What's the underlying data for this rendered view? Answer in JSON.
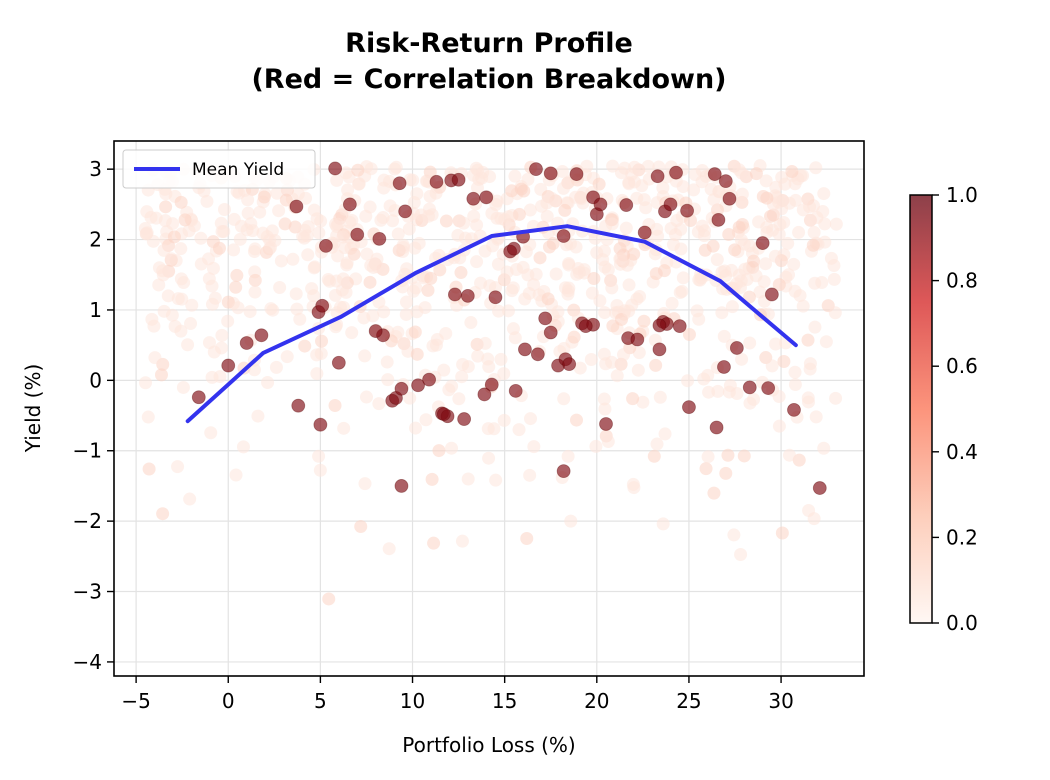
{
  "chart_data": {
    "type": "scatter",
    "title": "Risk-Return Profile",
    "subtitle": "(Red = Correlation Breakdown)",
    "xlabel": "Portfolio Loss (%)",
    "ylabel": "Yield (%)",
    "xlim": [
      -6.2,
      34.5
    ],
    "ylim": [
      -4.2,
      3.4
    ],
    "xticks": [
      "−5",
      "0",
      "5",
      "10",
      "15",
      "20",
      "25",
      "30"
    ],
    "xtick_values": [
      -5,
      0,
      5,
      10,
      15,
      20,
      25,
      30
    ],
    "yticks": [
      "−4",
      "−3",
      "−2",
      "−1",
      "0",
      "1",
      "2",
      "3"
    ],
    "ytick_values": [
      -4,
      -3,
      -2,
      -1,
      0,
      1,
      2,
      3
    ],
    "grid": true,
    "legend": {
      "position": "top-left",
      "entries": [
        "Mean Yield"
      ]
    },
    "colorbar": {
      "colormap": "Reds",
      "range": [
        0,
        1
      ],
      "ticks": [
        "0.0",
        "0.2",
        "0.4",
        "0.6",
        "0.8",
        "1.0"
      ],
      "tick_values": [
        0,
        0.2,
        0.4,
        0.6,
        0.8,
        1.0
      ]
    },
    "colors": {
      "line": "#3333ee",
      "breakdown": "#7f0a12",
      "normal": "#fde8df"
    },
    "series": [
      {
        "name": "Mean Yield",
        "type": "line",
        "x": [
          -2.2,
          1.9,
          6.1,
          10.2,
          14.3,
          18.4,
          22.6,
          26.7,
          30.8
        ],
        "y": [
          -0.58,
          0.39,
          0.9,
          1.53,
          2.05,
          2.19,
          1.97,
          1.41,
          0.5
        ]
      },
      {
        "type": "scatter",
        "label": "breakdown",
        "color_value": 1.0,
        "x": [
          5.8,
          3.7,
          6.6,
          8.2,
          9.3,
          9.6,
          11.3,
          12.1,
          12.5,
          13.3,
          14.0,
          15.3,
          16.0,
          16.7,
          17.5,
          18.2,
          18.9,
          19.8,
          20.0,
          20.2,
          21.6,
          22.6,
          23.3,
          23.7,
          24.0,
          24.3,
          24.9,
          26.4,
          26.6,
          27.0,
          27.2,
          29.0,
          29.5,
          30.7,
          32.1,
          -1.6,
          0.0,
          1.0,
          1.8,
          3.8,
          4.9,
          5.1,
          5.3,
          6.0,
          7.0,
          8.4,
          8.9,
          9.1,
          9.4,
          10.3,
          10.9,
          11.6,
          11.9,
          12.3,
          13.0,
          13.9,
          14.3,
          15.6,
          16.1,
          16.8,
          17.2,
          17.9,
          18.3,
          18.5,
          19.2,
          19.8,
          20.5,
          21.7,
          22.2,
          23.4,
          23.6,
          23.8,
          24.5,
          25.0,
          26.5,
          26.9,
          27.6,
          28.3,
          29.3,
          9.4,
          11.7,
          12.8,
          14.5,
          15.5,
          17.5,
          19.4,
          23.4
        ],
        "y": [
          3.01,
          2.47,
          2.5,
          2.01,
          2.8,
          2.4,
          2.82,
          2.84,
          2.85,
          2.58,
          2.6,
          1.83,
          2.04,
          3.0,
          2.94,
          2.05,
          2.93,
          2.6,
          2.36,
          2.5,
          2.49,
          2.1,
          2.9,
          2.4,
          2.5,
          2.95,
          2.41,
          2.93,
          2.28,
          2.83,
          2.58,
          1.95,
          1.22,
          -0.42,
          -1.53,
          -0.24,
          0.21,
          0.53,
          0.64,
          -0.36,
          0.97,
          1.06,
          1.91,
          0.25,
          2.07,
          0.64,
          -0.29,
          -0.25,
          -0.12,
          -0.07,
          0.01,
          -0.47,
          -0.51,
          1.22,
          1.2,
          -0.2,
          -0.06,
          -0.15,
          0.44,
          0.37,
          0.88,
          0.21,
          0.3,
          0.23,
          0.81,
          0.79,
          -0.62,
          0.6,
          0.58,
          0.44,
          0.83,
          0.8,
          0.77,
          -0.38,
          -0.67,
          0.19,
          0.46,
          -0.1,
          -0.11,
          -1.5,
          -0.48,
          -0.55,
          1.18,
          1.87,
          0.68,
          0.77,
          0.78
        ],
        "extra_points": {
          "x": [
            18.2,
            5.0,
            8.0
          ],
          "y": [
            -1.29,
            -0.63,
            0.7
          ]
        }
      }
    ]
  }
}
